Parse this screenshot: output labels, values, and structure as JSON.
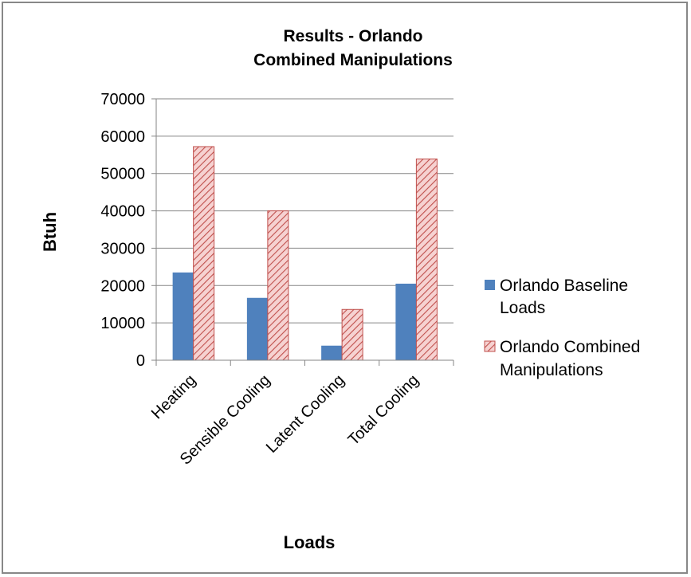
{
  "chart_data": {
    "type": "bar",
    "title": [
      "Results - Orlando",
      "Combined Manipulations"
    ],
    "xlabel": "Loads",
    "ylabel": "Btuh",
    "ylim": [
      0,
      70000
    ],
    "yticks": [
      0,
      10000,
      20000,
      30000,
      40000,
      50000,
      60000,
      70000
    ],
    "grid": true,
    "legend_position": "right",
    "categories": [
      "Heating",
      "Sensible Cooling",
      "Latent Cooling",
      "Total Cooling"
    ],
    "series": [
      {
        "name": [
          "Orlando Baseline",
          "Loads"
        ],
        "values": [
          23500,
          16700,
          3900,
          20500
        ],
        "color": "#4f81bd",
        "pattern": "solid"
      },
      {
        "name": [
          "Orlando Combined",
          "Manipulations"
        ],
        "values": [
          57200,
          40000,
          13600,
          53900
        ],
        "color": "#c0504d",
        "fill": "#f2c4c3",
        "pattern": "diagonal-hatch"
      }
    ]
  }
}
